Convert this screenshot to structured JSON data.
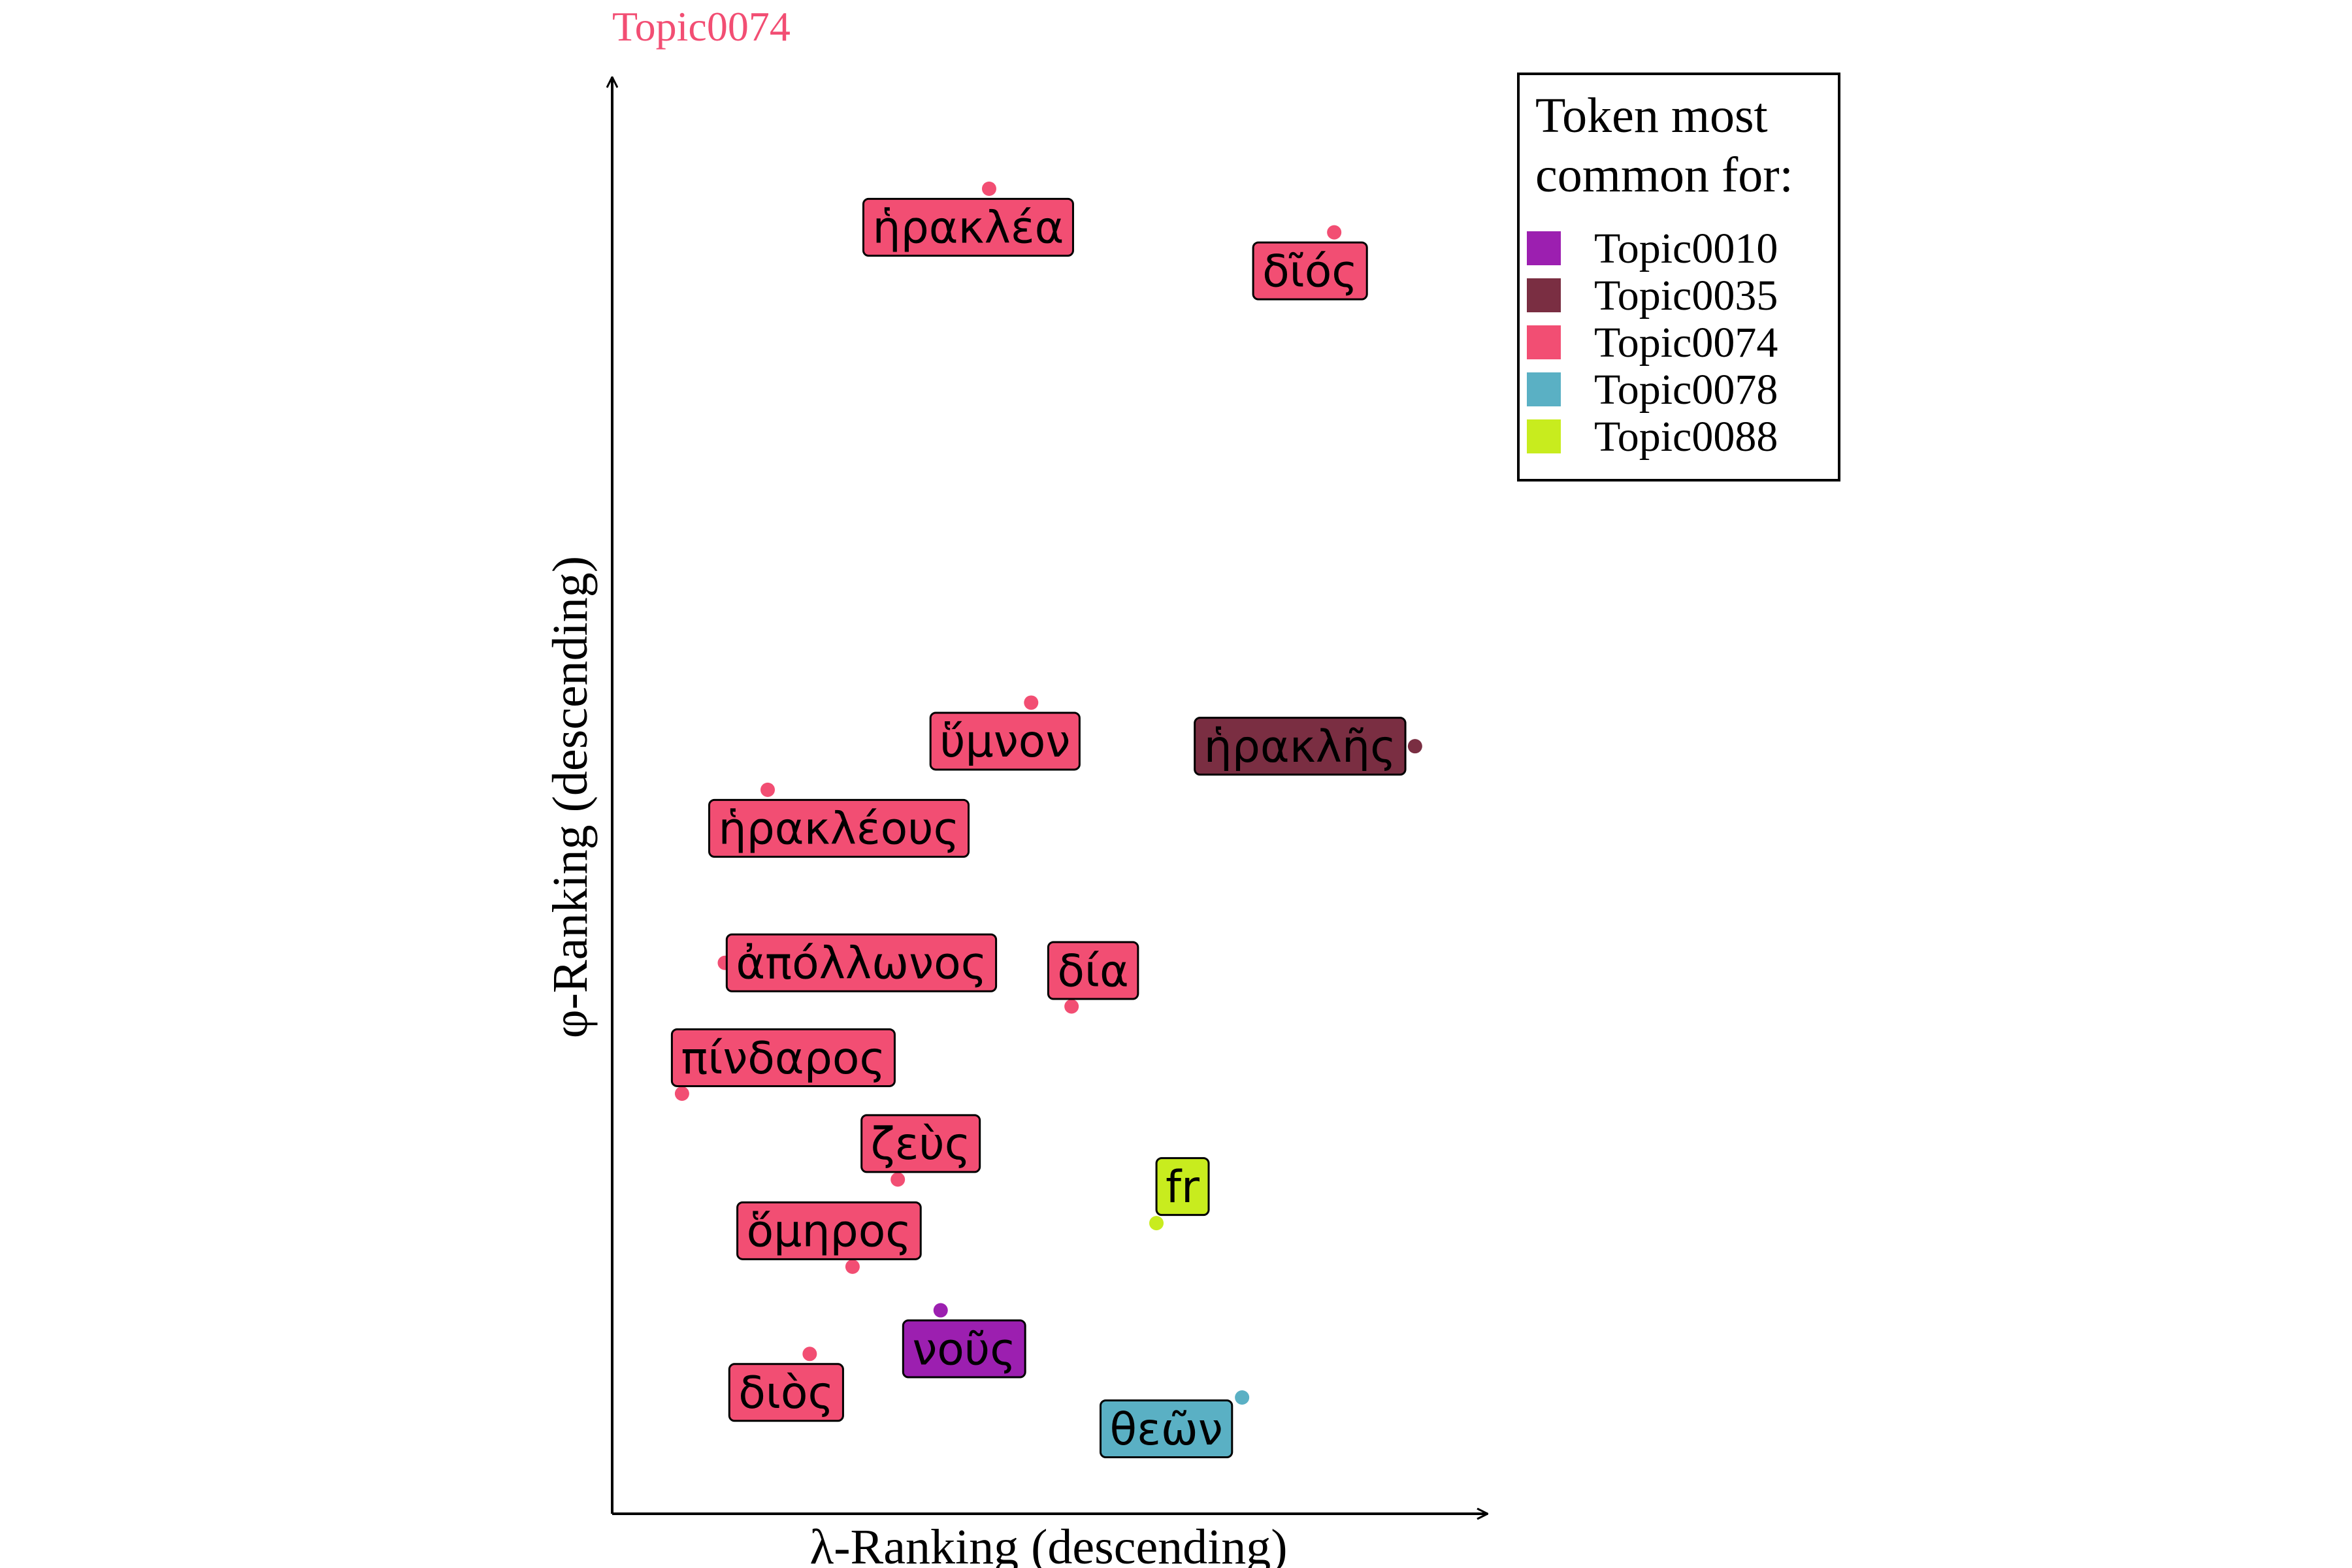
{
  "chart_data": {
    "type": "scatter",
    "title": "Topic0074",
    "title_color": "#f24e73",
    "xlabel": "λ-Ranking (descending)",
    "ylabel": "φ-Ranking (descending)",
    "xlim": [
      0,
      100
    ],
    "ylim": [
      0,
      100
    ],
    "grid": false,
    "legend": {
      "title_lines": [
        "Token most",
        "common for:"
      ],
      "placement": "top-right",
      "entries": [
        {
          "name": "Topic0010",
          "color": "#9c1fb0"
        },
        {
          "name": "Topic0035",
          "color": "#7a2e42"
        },
        {
          "name": "Topic0074",
          "color": "#f24e73"
        },
        {
          "name": "Topic0078",
          "color": "#5ab0c4"
        },
        {
          "name": "Topic0088",
          "color": "#c8ec1e"
        }
      ]
    },
    "points": [
      {
        "label": "ἡρακλέα",
        "topic": "Topic0074",
        "x": 42.6,
        "y": 96.0
      },
      {
        "label": "δῖός",
        "topic": "Topic0074",
        "x": 85.3,
        "y": 92.7
      },
      {
        "label": "ὕμνον",
        "topic": "Topic0074",
        "x": 47.8,
        "y": 57.1
      },
      {
        "label": "ἡρακλῆς",
        "topic": "Topic0035",
        "x": 95.3,
        "y": 53.8
      },
      {
        "label": "ἡρακλέους",
        "topic": "Topic0074",
        "x": 15.2,
        "y": 50.5
      },
      {
        "label": "ἀπόλλωνος",
        "topic": "Topic0074",
        "x": 9.9,
        "y": 37.4
      },
      {
        "label": "δία",
        "topic": "Topic0074",
        "x": 52.8,
        "y": 34.1
      },
      {
        "label": "πίνδαρος",
        "topic": "Topic0074",
        "x": 4.6,
        "y": 27.5
      },
      {
        "label": "ζεὺς",
        "topic": "Topic0074",
        "x": 31.3,
        "y": 21.0
      },
      {
        "label": "fr",
        "topic": "Topic0088",
        "x": 63.3,
        "y": 17.7
      },
      {
        "label": "ὅμηρος",
        "topic": "Topic0074",
        "x": 25.7,
        "y": 14.4
      },
      {
        "label": "νοῦς",
        "topic": "Topic0010",
        "x": 36.6,
        "y": 11.1
      },
      {
        "label": "διὸς",
        "topic": "Topic0074",
        "x": 20.4,
        "y": 7.8
      },
      {
        "label": "θεῶν",
        "topic": "Topic0078",
        "x": 73.9,
        "y": 4.5
      }
    ]
  }
}
